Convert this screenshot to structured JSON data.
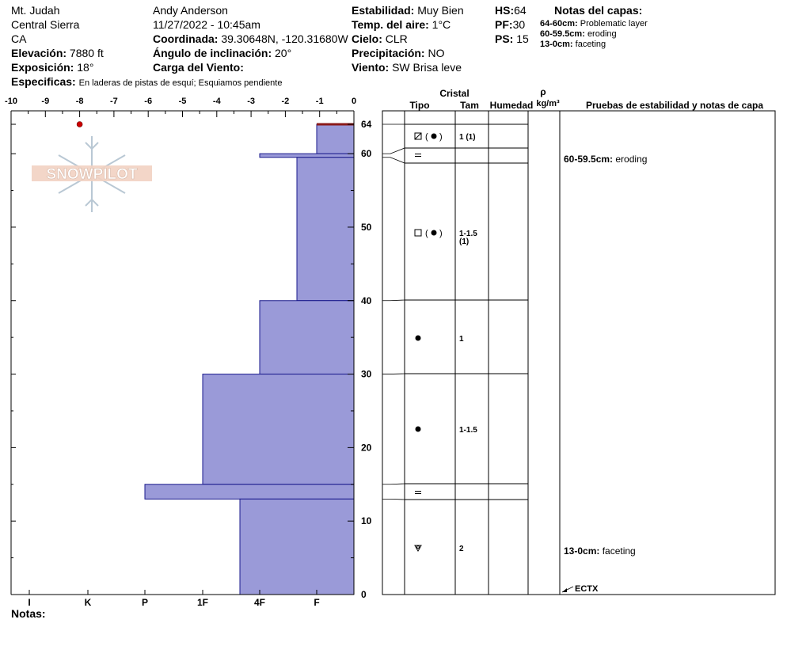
{
  "header": {
    "location": "Mt. Judah",
    "region": "Central Sierra",
    "state": "CA",
    "elevation_label": "Elevación:",
    "elevation_value": "7880 ft",
    "aspect_label": "Exposición:",
    "aspect_value": "18°",
    "specifics_label": "Especificas:",
    "specifics_value": "En laderas de pistas de esquí; Esquiamos pendiente",
    "observer": "Andy Anderson",
    "datetime": "11/27/2022 - 10:45am",
    "coord_label": "Coordinada:",
    "coord_value": "39.30648N, -120.31680W",
    "incline_label": "Ángulo de inclinación:",
    "incline_value": "20°",
    "wind_load_label": "Carga del Viento:",
    "stability_label": "Estabilidad:",
    "stability_value": "Muy Bien",
    "air_temp_label": "Temp. del aire:",
    "air_temp_value": "1°C",
    "sky_label": "Cielo:",
    "sky_value": "CLR",
    "precip_label": "Precipitación:",
    "precip_value": "NO",
    "wind_label": "Viento:",
    "wind_value": "SW Brisa leve",
    "hs_label": "HS:",
    "hs_value": "64",
    "pf_label": "PF:",
    "pf_value": "30",
    "ps_label": "PS:",
    "ps_value": "15",
    "layer_notes_title": "Notas del capas:",
    "layer_notes": [
      {
        "range": "64-60cm:",
        "text": "Problematic layer"
      },
      {
        "range": "60-59.5cm:",
        "text": "eroding"
      },
      {
        "range": "13-0cm:",
        "text": "faceting"
      }
    ]
  },
  "logo_text": "SNOWPILOT",
  "notes_label": "Notas:",
  "table": {
    "cristal_label": "Cristal",
    "tipo_label": "Tipo",
    "tam_label": "Tam",
    "humedad_label": "Humedad",
    "rho_label": "ρ",
    "density_unit": "kg/m³",
    "tests_label": "Pruebas de estabilidad y notas de capa"
  },
  "colors": {
    "hardness_fill": "#9a9ad8",
    "hardness_stroke": "#1a1a8c",
    "top_layer": "#8b1a1a",
    "temp_point": "#cc0000"
  },
  "chart_data": {
    "type": "bar",
    "temp_axis": {
      "range": [
        -10,
        0
      ],
      "ticks": [
        "-10",
        "-9",
        "-8",
        "-7",
        "-6",
        "-5",
        "-4",
        "-3",
        "-2",
        "-1",
        "0"
      ]
    },
    "depth_axis": {
      "range": [
        0,
        64
      ],
      "ticks": [
        0,
        10,
        20,
        30,
        40,
        50,
        60,
        64
      ]
    },
    "hardness_axis": {
      "ticks": [
        "I",
        "K",
        "P",
        "1F",
        "4F",
        "F"
      ]
    },
    "temperature_profile": [
      {
        "depth": 64,
        "temp": -8
      }
    ],
    "layers": [
      {
        "top": 64,
        "bottom": 60,
        "hardness": "F",
        "grain": "mixed-rounding",
        "size": "1 (1)"
      },
      {
        "top": 60,
        "bottom": 59.5,
        "hardness": "4F",
        "grain": "crust",
        "size": ""
      },
      {
        "top": 59.5,
        "bottom": 40,
        "hardness": "F+",
        "grain": "faceted-rounded",
        "size": "1-1.5 (1)"
      },
      {
        "top": 40,
        "bottom": 30,
        "hardness": "4F",
        "grain": "rounded",
        "size": "1"
      },
      {
        "top": 30,
        "bottom": 15,
        "hardness": "1F",
        "grain": "rounded",
        "size": "1-1.5"
      },
      {
        "top": 15,
        "bottom": 13,
        "hardness": "P",
        "grain": "crust",
        "size": ""
      },
      {
        "top": 13,
        "bottom": 0,
        "hardness": "4F+",
        "grain": "depth-hoar",
        "size": "2"
      }
    ],
    "layer_comments": [
      {
        "depth": 60,
        "range": "60-59.5cm:",
        "text": "eroding"
      },
      {
        "depth": 13,
        "range": "13-0cm:",
        "text": "faceting"
      }
    ],
    "stability_tests": [
      {
        "depth": 0,
        "label": "ECTX"
      }
    ]
  }
}
